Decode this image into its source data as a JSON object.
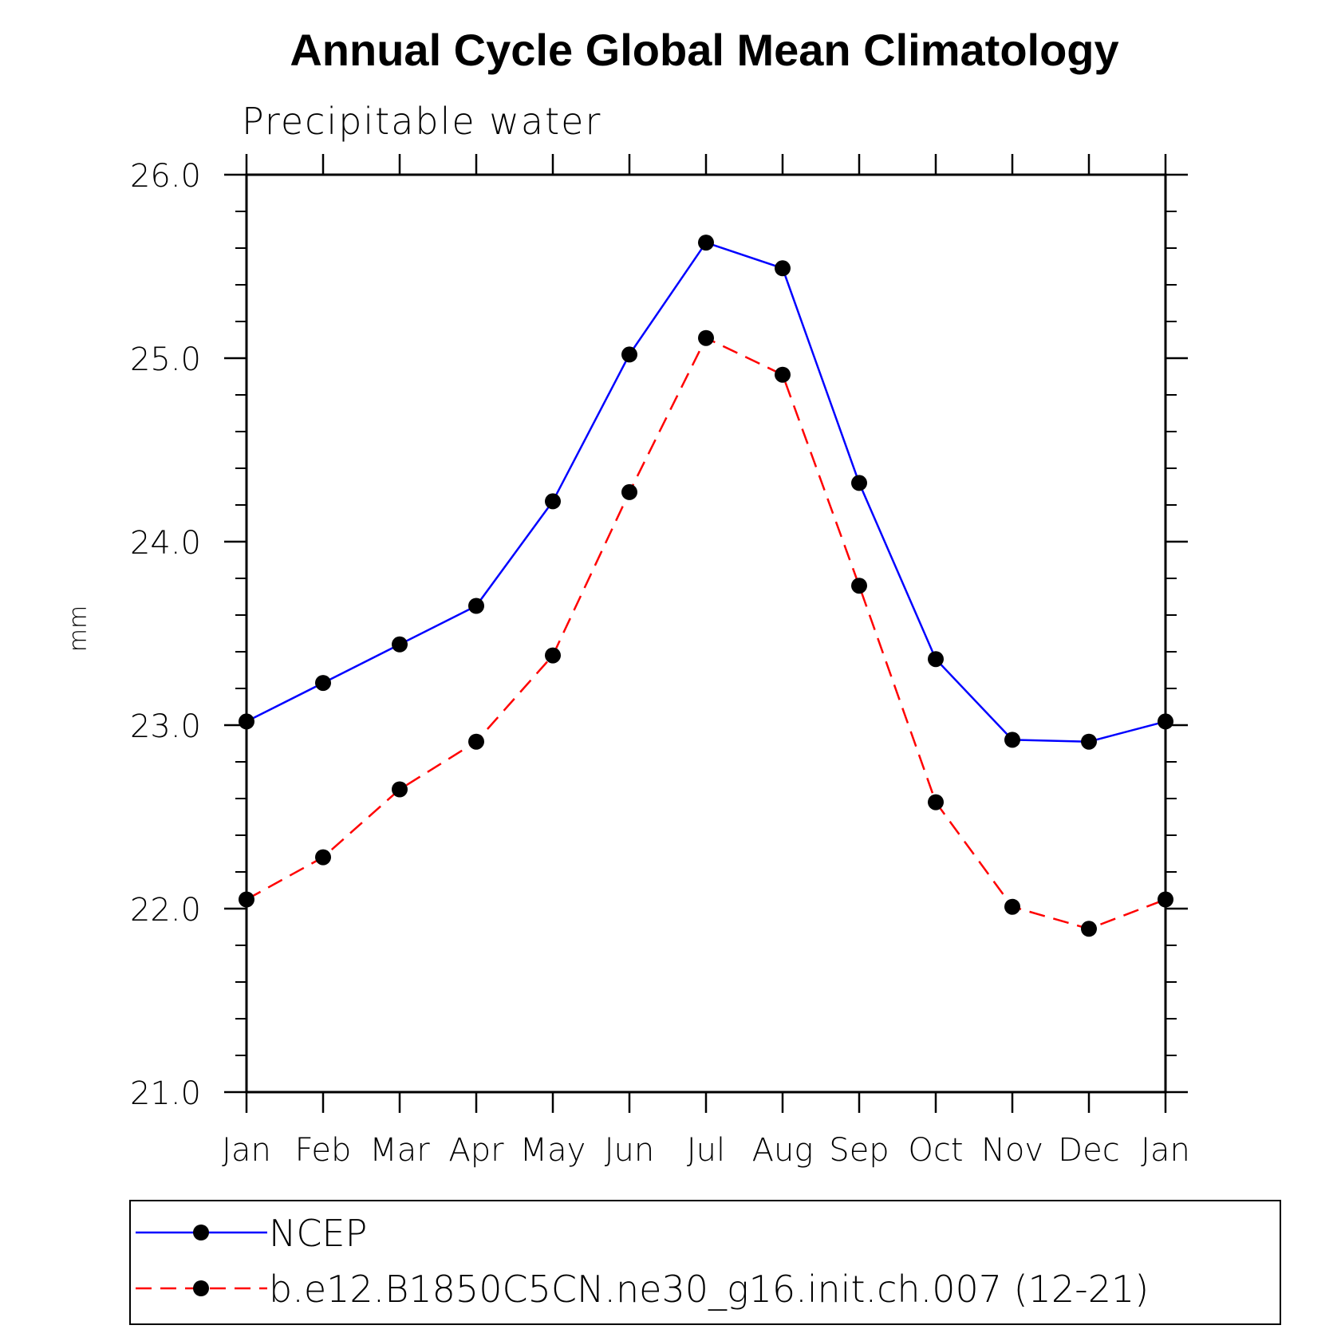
{
  "chart_data": {
    "type": "line",
    "title": "Annual Cycle Global Mean Climatology",
    "subtitle": "Precipitable water",
    "ylabel": "mm",
    "xlabel": "",
    "categories": [
      "Jan",
      "Feb",
      "Mar",
      "Apr",
      "May",
      "Jun",
      "Jul",
      "Aug",
      "Sep",
      "Oct",
      "Nov",
      "Dec",
      "Jan"
    ],
    "ylim": [
      21.0,
      26.0
    ],
    "yticks": [
      "21.0",
      "22.0",
      "23.0",
      "24.0",
      "25.0",
      "26.0"
    ],
    "grid": false,
    "legend_position": "bottom",
    "series": [
      {
        "name": "NCEP",
        "color": "#0000ff",
        "line_style": "solid",
        "values": [
          23.02,
          23.23,
          23.44,
          23.65,
          24.22,
          25.02,
          25.63,
          25.49,
          24.32,
          23.36,
          22.92,
          22.91,
          23.02
        ]
      },
      {
        "name": "b.e12.B1850C5CN.ne30_g16.init.ch.007 (12-21)",
        "color": "#ff0000",
        "line_style": "dashed",
        "values": [
          22.05,
          22.28,
          22.65,
          22.91,
          23.38,
          24.27,
          25.11,
          24.91,
          23.76,
          22.58,
          22.01,
          21.89,
          22.05
        ]
      }
    ]
  }
}
